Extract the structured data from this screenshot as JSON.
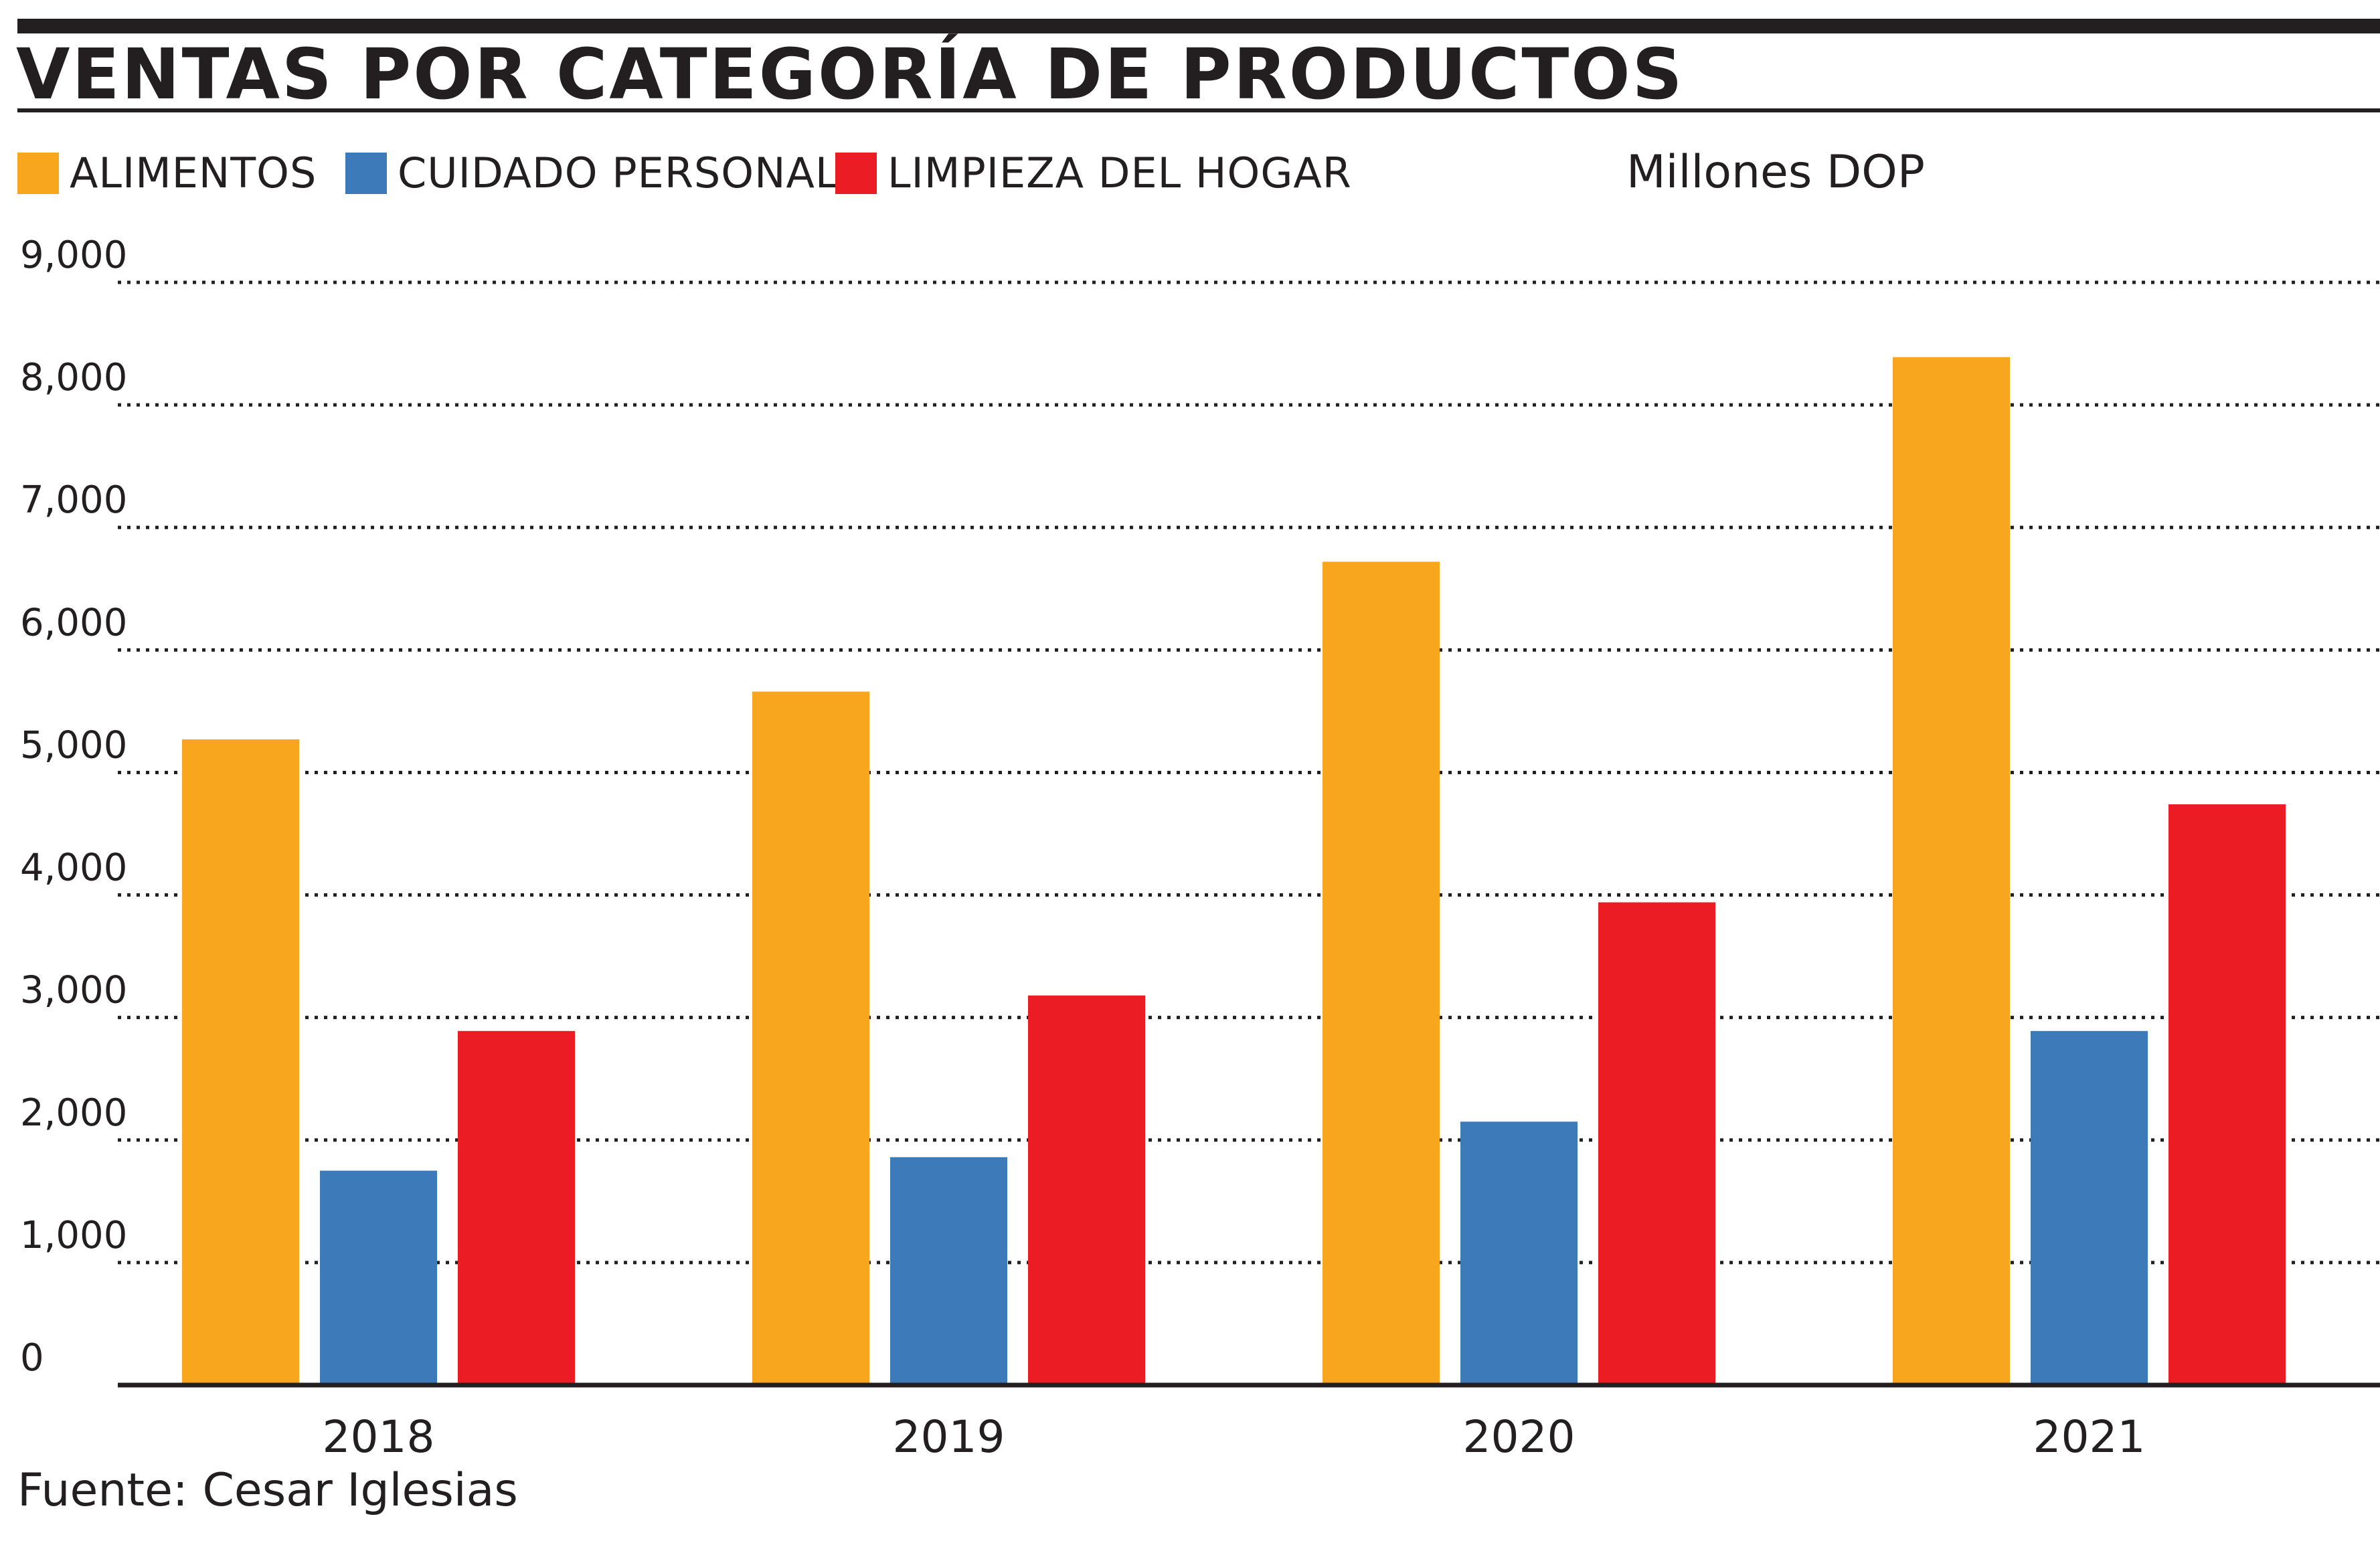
{
  "chart_data": {
    "type": "bar",
    "title": "VENTAS POR CATEGORÍA DE PRODUCTOS",
    "units_label": "Millones DOP",
    "source": "Fuente: Cesar Iglesias",
    "categories": [
      "2018",
      "2019",
      "2020",
      "2021"
    ],
    "ylim": [
      0,
      9000
    ],
    "yticks": [
      0,
      1000,
      2000,
      3000,
      4000,
      5000,
      6000,
      7000,
      8000,
      9000
    ],
    "ytick_labels": [
      "0",
      "1,000",
      "2,000",
      "3,000",
      "4,000",
      "5,000",
      "6,000",
      "7,000",
      "8,000",
      "9,000"
    ],
    "grid": true,
    "legend_position": "top",
    "series": [
      {
        "name": "ALIMENTOS",
        "color": "#f8a61d",
        "values": [
          5270,
          5660,
          6720,
          8390
        ]
      },
      {
        "name": "CUIDADO PERSONAL",
        "color": "#3d7aba",
        "values": [
          1750,
          1860,
          2150,
          2890
        ]
      },
      {
        "name": "LIMPIEZA DEL HOGAR",
        "color": "#ec1c24",
        "values": [
          2890,
          3180,
          3940,
          4740
        ]
      }
    ]
  }
}
